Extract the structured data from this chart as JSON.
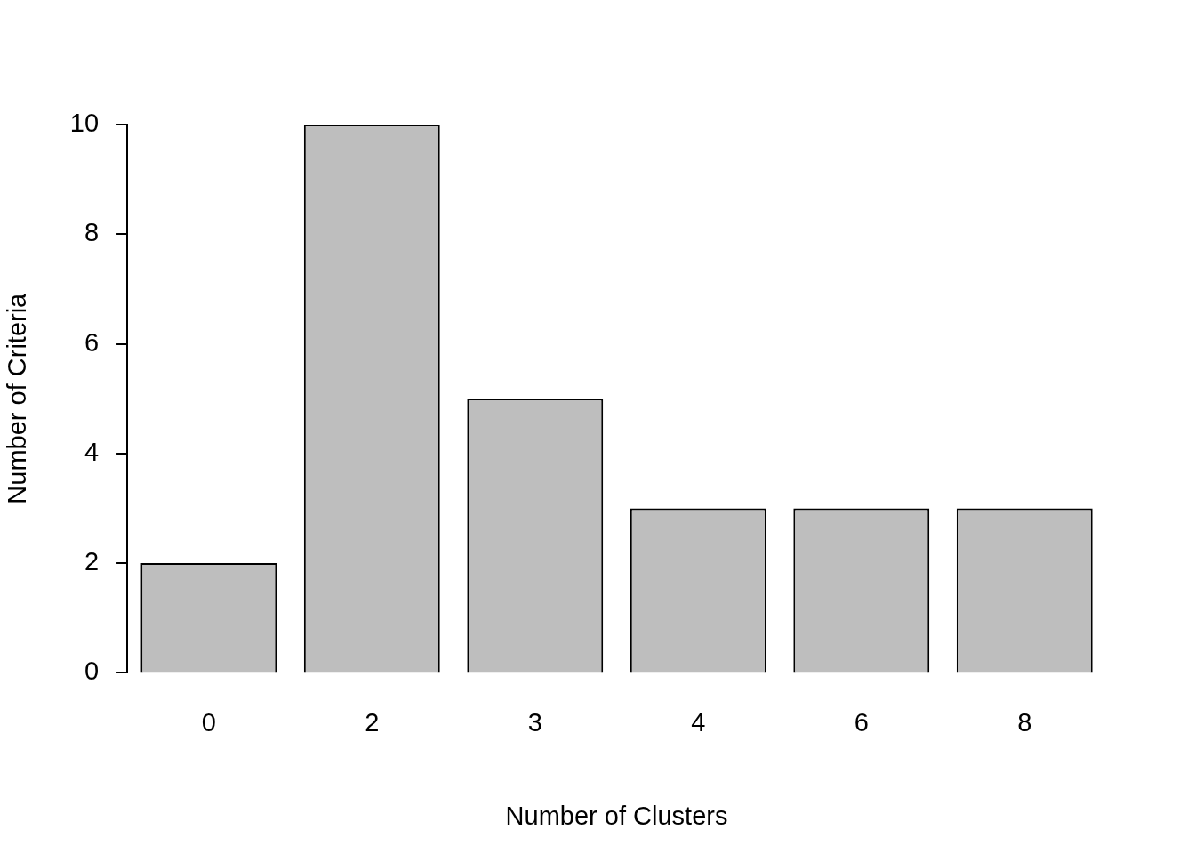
{
  "chart_data": {
    "type": "bar",
    "xlabel": "Number of Clusters",
    "ylabel": "Number of Criteria",
    "categories": [
      "0",
      "2",
      "3",
      "4",
      "6",
      "8"
    ],
    "values": [
      2,
      10,
      5,
      3,
      3,
      3
    ],
    "color": "#bebebe",
    "ylim": [
      0,
      10
    ],
    "yticks": [
      0,
      2,
      4,
      6,
      8,
      10
    ],
    "grid": false,
    "legend": false
  }
}
